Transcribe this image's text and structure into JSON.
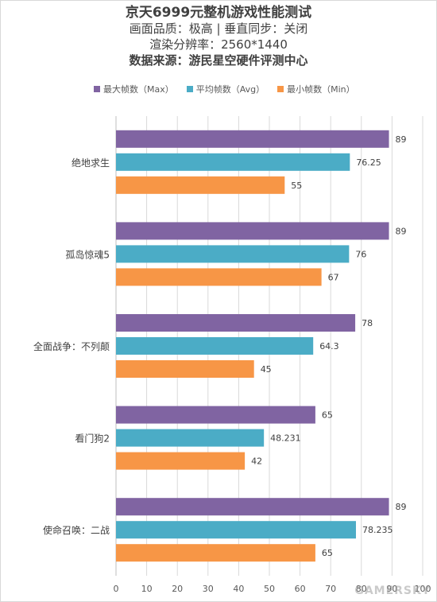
{
  "chart_data": {
    "type": "bar",
    "orientation": "horizontal",
    "title_lines": [
      "京天6999元整机游戏性能测试",
      "画面品质：极高 | 垂直同步：关闭",
      "渲染分辨率：2560*1440",
      "数据来源：游民星空硬件评测中心"
    ],
    "categories": [
      "绝地求生",
      "孤岛惊魂5",
      "全面战争：不列颠",
      "看门狗2",
      "使命召唤：二战"
    ],
    "series": [
      {
        "name": "最大帧数（Max）",
        "color": "#8064a2",
        "values": [
          89,
          89,
          78,
          65,
          89
        ],
        "labels": [
          "89",
          "89",
          "78",
          "65",
          "89"
        ]
      },
      {
        "name": "平均帧数（Avg）",
        "color": "#4bacc6",
        "values": [
          76.25,
          76,
          64.3,
          48.231,
          78.235
        ],
        "labels": [
          "76.25",
          "76",
          "64.3",
          "48.231",
          "78.235"
        ]
      },
      {
        "name": "最小帧数（Min）",
        "color": "#f79646",
        "values": [
          55,
          67,
          45,
          42,
          65
        ],
        "labels": [
          "55",
          "67",
          "45",
          "42",
          "65"
        ]
      }
    ],
    "xlim": [
      0,
      100
    ],
    "xticks": [
      0,
      10,
      20,
      30,
      40,
      50,
      60,
      70,
      80,
      90,
      100
    ],
    "grid": true,
    "legend_position": "top"
  },
  "watermark": "GAMERSKY"
}
